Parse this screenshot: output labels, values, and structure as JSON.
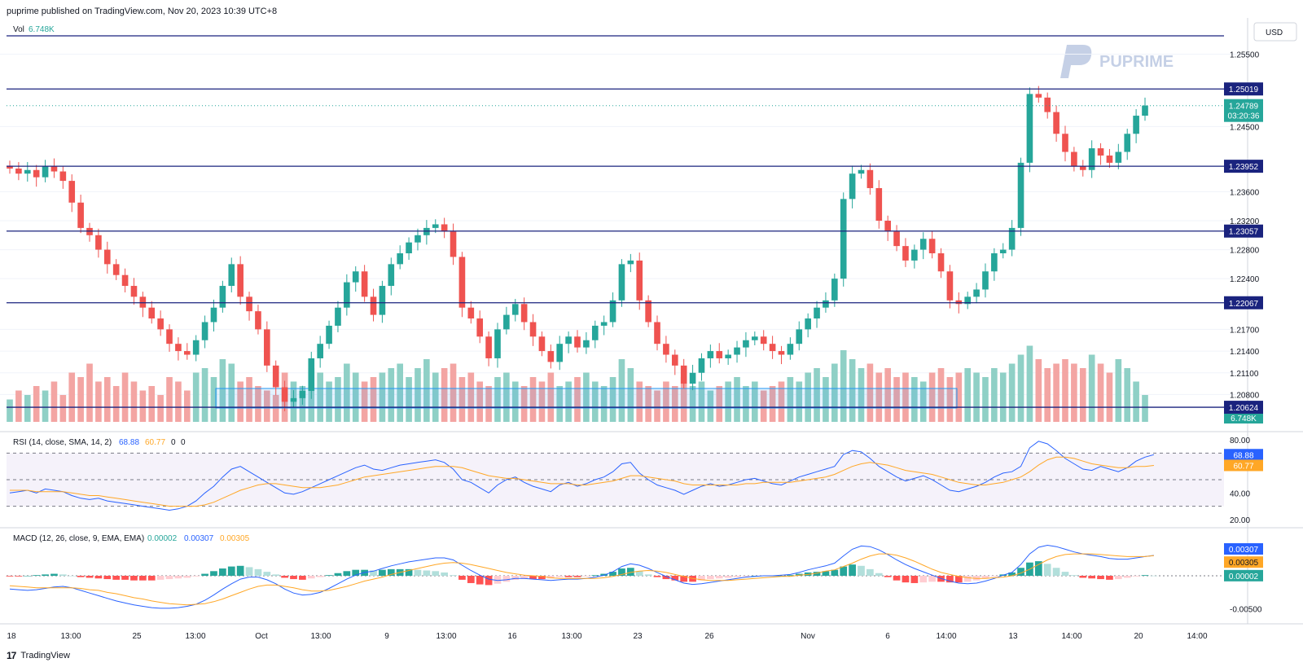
{
  "header": {
    "text": "puprime published on TradingView.com, Nov 20, 2023 10:39 UTC+8"
  },
  "footer": {
    "logo": "17",
    "brand": "TradingView"
  },
  "watermark": "PUPRIME",
  "colors": {
    "up": "#26a69a",
    "down": "#ef5350",
    "up_vol": "#8fd0c6",
    "down_vol": "#f3a5a3",
    "level": "#1a237e",
    "rsi_line": "#2962ff",
    "rsi_ma": "#ffa726",
    "macd_line": "#2962ff",
    "signal_line": "#ffa726",
    "grid": "#f0f3fa"
  },
  "chart_data": [
    {
      "type": "candlestick",
      "title": "",
      "currency": "USD",
      "volume_label": "Vol",
      "volume_value": "6.748K",
      "x_tick_labels": [
        "18",
        "13:00",
        "25",
        "13:00",
        "Oct",
        "13:00",
        "9",
        "13:00",
        "16",
        "13:00",
        "23",
        "26",
        "Nov",
        "6",
        "14:00",
        "13",
        "14:00",
        "20",
        "14:00"
      ],
      "y_tick_labels": [
        "1.25500",
        "1.24500",
        "1.23600",
        "1.23200",
        "1.22800",
        "1.22400",
        "1.21700",
        "1.21400",
        "1.21100",
        "1.20800"
      ],
      "ylim": [
        1.204,
        1.26
      ],
      "horizontal_levels": [
        "1.25019",
        "1.23952",
        "1.23057",
        "1.22067",
        "1.20624"
      ],
      "last_price": "1.24789",
      "countdown": "03:20:36",
      "close_series": [
        1.2392,
        1.2385,
        1.239,
        1.238,
        1.2395,
        1.2388,
        1.2375,
        1.2345,
        1.231,
        1.23,
        1.228,
        1.226,
        1.2245,
        1.223,
        1.2215,
        1.22,
        1.2185,
        1.217,
        1.215,
        1.214,
        1.2135,
        1.2155,
        1.218,
        1.22,
        1.223,
        1.226,
        1.2215,
        1.2195,
        1.217,
        1.212,
        1.209,
        1.207,
        1.2075,
        1.2085,
        1.213,
        1.215,
        1.2175,
        1.22,
        1.2235,
        1.225,
        1.2215,
        1.219,
        1.223,
        1.226,
        1.2275,
        1.229,
        1.23,
        1.231,
        1.2315,
        1.2305,
        1.227,
        1.22,
        1.2185,
        1.216,
        1.213,
        1.217,
        1.219,
        1.2205,
        1.218,
        1.216,
        1.214,
        1.2125,
        1.215,
        1.216,
        1.2145,
        1.2155,
        1.2175,
        1.218,
        1.221,
        1.226,
        1.2265,
        1.221,
        1.218,
        1.215,
        1.2135,
        1.212,
        1.2095,
        1.211,
        1.213,
        1.214,
        1.213,
        1.2135,
        1.2145,
        1.2155,
        1.216,
        1.215,
        1.214,
        1.2135,
        1.215,
        1.217,
        1.2185,
        1.22,
        1.221,
        1.224,
        1.235,
        1.2385,
        1.239,
        1.2365,
        1.232,
        1.2305,
        1.2285,
        1.2265,
        1.228,
        1.2295,
        1.2275,
        1.225,
        1.221,
        1.2205,
        1.2215,
        1.2225,
        1.225,
        1.2275,
        1.228,
        1.231,
        1.24,
        1.2495,
        1.249,
        1.247,
        1.244,
        1.2415,
        1.2395,
        1.239,
        1.242,
        1.241,
        1.24,
        1.2415,
        1.244,
        1.2465,
        1.2479
      ],
      "volume_series": [
        0.25,
        0.35,
        0.3,
        0.4,
        0.35,
        0.45,
        0.3,
        0.55,
        0.5,
        0.65,
        0.45,
        0.5,
        0.4,
        0.55,
        0.45,
        0.35,
        0.4,
        0.3,
        0.5,
        0.45,
        0.35,
        0.55,
        0.6,
        0.5,
        0.7,
        0.65,
        0.45,
        0.5,
        0.4,
        0.35,
        0.3,
        0.55,
        0.45,
        0.4,
        0.6,
        0.55,
        0.45,
        0.5,
        0.65,
        0.55,
        0.45,
        0.5,
        0.55,
        0.6,
        0.65,
        0.5,
        0.6,
        0.7,
        0.55,
        0.6,
        0.65,
        0.5,
        0.55,
        0.45,
        0.4,
        0.5,
        0.55,
        0.45,
        0.4,
        0.5,
        0.45,
        0.55,
        0.4,
        0.45,
        0.5,
        0.55,
        0.45,
        0.4,
        0.5,
        0.7,
        0.6,
        0.45,
        0.4,
        0.35,
        0.45,
        0.4,
        0.5,
        0.4,
        0.45,
        0.35,
        0.4,
        0.45,
        0.5,
        0.4,
        0.45,
        0.35,
        0.4,
        0.45,
        0.5,
        0.45,
        0.55,
        0.6,
        0.5,
        0.65,
        0.8,
        0.7,
        0.6,
        0.65,
        0.55,
        0.6,
        0.5,
        0.55,
        0.5,
        0.45,
        0.55,
        0.6,
        0.5,
        0.55,
        0.6,
        0.55,
        0.5,
        0.6,
        0.55,
        0.65,
        0.75,
        0.85,
        0.7,
        0.6,
        0.65,
        0.7,
        0.65,
        0.6,
        0.75,
        0.65,
        0.55,
        0.7,
        0.6,
        0.45,
        0.3
      ]
    },
    {
      "type": "line",
      "title": "RSI (14, close, SMA, 14, 2)",
      "values_label": [
        "68.88",
        "60.77",
        "0",
        "0"
      ],
      "y_tick_labels": [
        "80.00",
        "40.00",
        "20.00"
      ],
      "ylim": [
        15,
        85
      ],
      "bands": [
        30,
        50,
        70
      ],
      "series": [
        {
          "name": "RSI",
          "values": [
            40,
            41,
            42,
            40,
            43,
            42,
            41,
            38,
            36,
            35,
            36,
            34,
            33,
            32,
            31,
            30,
            29,
            28,
            27,
            28,
            30,
            34,
            40,
            45,
            52,
            58,
            60,
            56,
            52,
            48,
            44,
            40,
            39,
            41,
            44,
            47,
            50,
            53,
            56,
            59,
            61,
            58,
            57,
            59,
            61,
            62,
            63,
            64,
            65,
            63,
            58,
            50,
            48,
            44,
            40,
            46,
            50,
            52,
            48,
            45,
            43,
            41,
            46,
            48,
            45,
            47,
            50,
            52,
            56,
            62,
            63,
            55,
            50,
            46,
            44,
            42,
            39,
            42,
            45,
            47,
            45,
            46,
            48,
            50,
            51,
            49,
            47,
            46,
            49,
            52,
            54,
            56,
            58,
            60,
            69,
            72,
            71,
            66,
            60,
            56,
            52,
            49,
            51,
            53,
            50,
            46,
            42,
            41,
            43,
            45,
            48,
            52,
            55,
            56,
            60,
            74,
            79,
            77,
            72,
            66,
            62,
            58,
            57,
            60,
            58,
            56,
            59,
            64,
            67,
            68.88
          ]
        },
        {
          "name": "RSI-based MA",
          "values": [
            42,
            42,
            42,
            41,
            41,
            41,
            41,
            40,
            39,
            38,
            38,
            37,
            36,
            35,
            34,
            33,
            32,
            31,
            30,
            30,
            30,
            30,
            31,
            33,
            36,
            39,
            42,
            44,
            46,
            47,
            47,
            46,
            45,
            44,
            44,
            44,
            45,
            46,
            48,
            50,
            52,
            53,
            54,
            55,
            56,
            57,
            58,
            59,
            60,
            60,
            60,
            59,
            57,
            55,
            53,
            52,
            51,
            51,
            50,
            49,
            48,
            47,
            47,
            47,
            46,
            46,
            47,
            48,
            49,
            51,
            53,
            53,
            52,
            51,
            50,
            49,
            47,
            46,
            46,
            46,
            46,
            46,
            46,
            47,
            47,
            48,
            48,
            48,
            48,
            49,
            50,
            51,
            52,
            54,
            57,
            60,
            62,
            63,
            62,
            61,
            59,
            57,
            56,
            55,
            54,
            52,
            50,
            48,
            47,
            46,
            46,
            47,
            48,
            50,
            52,
            56,
            61,
            65,
            67,
            67,
            66,
            64,
            62,
            61,
            60,
            59,
            59,
            60,
            60,
            60.77
          ]
        }
      ]
    },
    {
      "type": "bar",
      "title": "MACD (12, 26, close, 9, EMA, EMA)",
      "values_label": [
        "0.00002",
        "0.00307",
        "0.00305"
      ],
      "y_tick_labels": [
        "-0.00500"
      ],
      "ylim": [
        -0.007,
        0.007
      ],
      "series": [
        {
          "name": "Histogram",
          "values": [
            -0.0001,
            -0.0001,
            0.0,
            0.0001,
            0.0002,
            0.0003,
            0.0002,
            0.0,
            -0.0002,
            -0.0003,
            -0.0004,
            -0.0005,
            -0.0006,
            -0.0006,
            -0.0007,
            -0.0007,
            -0.0007,
            -0.0006,
            -0.0005,
            -0.0004,
            -0.0003,
            -0.0001,
            0.0003,
            0.0007,
            0.0011,
            0.0014,
            0.0015,
            0.0013,
            0.001,
            0.0006,
            0.0002,
            -0.0003,
            -0.0005,
            -0.0006,
            -0.0004,
            -0.0002,
            0.0001,
            0.0004,
            0.0007,
            0.0009,
            0.0009,
            0.0008,
            0.0009,
            0.001,
            0.001,
            0.001,
            0.0009,
            0.0008,
            0.0007,
            0.0005,
            0.0001,
            -0.0006,
            -0.0011,
            -0.0013,
            -0.0014,
            -0.0012,
            -0.0009,
            -0.0006,
            -0.0005,
            -0.0005,
            -0.0005,
            -0.0004,
            -0.0002,
            -0.0002,
            -0.0002,
            -0.0001,
            0.0001,
            0.0003,
            0.0006,
            0.0011,
            0.0012,
            0.0007,
            0.0002,
            -0.0002,
            -0.0005,
            -0.0007,
            -0.0009,
            -0.0009,
            -0.0007,
            -0.0005,
            -0.0004,
            -0.0003,
            -0.0002,
            -0.0001,
            0.0,
            0.0,
            0.0,
            0.0,
            0.0001,
            0.0003,
            0.0005,
            0.0006,
            0.0007,
            0.0009,
            0.0014,
            0.0017,
            0.0015,
            0.001,
            0.0004,
            -0.0002,
            -0.0007,
            -0.001,
            -0.0011,
            -0.001,
            -0.0009,
            -0.0009,
            -0.001,
            -0.001,
            -0.0009,
            -0.0007,
            -0.0004,
            -0.0001,
            0.0002,
            0.0005,
            0.0012,
            0.002,
            0.0022,
            0.0018,
            0.0012,
            0.0006,
            0.0001,
            -0.0003,
            -0.0004,
            -0.0005,
            -0.0006,
            -0.0005,
            -0.0003,
            -0.0001,
            0.0001,
            2e-05
          ]
        },
        {
          "name": "MACD",
          "values": [
            -0.002,
            -0.0021,
            -0.0022,
            -0.0021,
            -0.0019,
            -0.0017,
            -0.0016,
            -0.0018,
            -0.0022,
            -0.0026,
            -0.003,
            -0.0034,
            -0.0038,
            -0.0041,
            -0.0044,
            -0.0046,
            -0.0048,
            -0.0049,
            -0.0049,
            -0.0048,
            -0.0046,
            -0.0043,
            -0.0037,
            -0.0029,
            -0.002,
            -0.0012,
            -0.0005,
            -0.0002,
            -0.0002,
            -0.0006,
            -0.0012,
            -0.002,
            -0.0026,
            -0.0029,
            -0.0028,
            -0.0025,
            -0.0019,
            -0.0012,
            -0.0005,
            0.0001,
            0.0005,
            0.0007,
            0.0011,
            0.0015,
            0.0018,
            0.0021,
            0.0023,
            0.0025,
            0.0027,
            0.0027,
            0.0024,
            0.0016,
            0.0008,
            0.0001,
            -0.0005,
            -0.0007,
            -0.0006,
            -0.0004,
            -0.0004,
            -0.0005,
            -0.0006,
            -0.0007,
            -0.0006,
            -0.0005,
            -0.0005,
            -0.0004,
            -0.0002,
            0.0001,
            0.0006,
            0.0014,
            0.0018,
            0.0016,
            0.0011,
            0.0005,
            -0.0001,
            -0.0006,
            -0.0011,
            -0.0013,
            -0.0012,
            -0.001,
            -0.0008,
            -0.0006,
            -0.0004,
            -0.0002,
            -0.0001,
            0.0,
            0.0,
            0.0001,
            0.0002,
            0.0005,
            0.0009,
            0.0012,
            0.0015,
            0.0019,
            0.003,
            0.004,
            0.0045,
            0.0044,
            0.0039,
            0.0032,
            0.0024,
            0.0017,
            0.0011,
            0.0006,
            0.0001,
            -0.0004,
            -0.0008,
            -0.0011,
            -0.0012,
            -0.0011,
            -0.0008,
            -0.0004,
            0.0001,
            0.0005,
            0.0017,
            0.0033,
            0.0043,
            0.0046,
            0.0044,
            0.004,
            0.0036,
            0.0033,
            0.0031,
            0.0029,
            0.0026,
            0.0025,
            0.0025,
            0.0027,
            0.0029,
            0.00307
          ]
        },
        {
          "name": "Signal",
          "values": [
            -0.0015,
            -0.0016,
            -0.0017,
            -0.0018,
            -0.0018,
            -0.0018,
            -0.0018,
            -0.0018,
            -0.0019,
            -0.0021,
            -0.0022,
            -0.0025,
            -0.0027,
            -0.003,
            -0.0033,
            -0.0035,
            -0.0038,
            -0.004,
            -0.0042,
            -0.0043,
            -0.0044,
            -0.0043,
            -0.0042,
            -0.0039,
            -0.0035,
            -0.003,
            -0.0025,
            -0.002,
            -0.0016,
            -0.0014,
            -0.0014,
            -0.0016,
            -0.0018,
            -0.0021,
            -0.0023,
            -0.0023,
            -0.0022,
            -0.0019,
            -0.0016,
            -0.0012,
            -0.0008,
            -0.0005,
            -0.0002,
            0.0002,
            0.0005,
            0.0008,
            0.0011,
            0.0014,
            0.0017,
            0.0019,
            0.002,
            0.0019,
            0.0017,
            0.0014,
            0.0011,
            0.0008,
            0.0005,
            0.0003,
            0.0001,
            0.0,
            -0.0001,
            -0.0003,
            -0.0004,
            -0.0004,
            -0.0004,
            -0.0004,
            -0.0004,
            -0.0003,
            -0.0001,
            0.0002,
            0.0005,
            0.0007,
            0.0008,
            0.0007,
            0.0005,
            0.0002,
            -0.0001,
            -0.0004,
            -0.0006,
            -0.0007,
            -0.0007,
            -0.0007,
            -0.0006,
            -0.0005,
            -0.0004,
            -0.0003,
            -0.0002,
            -0.0001,
            -0.0001,
            0.0001,
            0.0002,
            0.0004,
            0.0007,
            0.0009,
            0.0014,
            0.0019,
            0.0025,
            0.003,
            0.0033,
            0.0033,
            0.0031,
            0.0027,
            0.0022,
            0.0016,
            0.001,
            0.0005,
            0.0002,
            -0.0001,
            -0.0003,
            -0.0004,
            -0.0004,
            -0.0003,
            -0.0002,
            0.0,
            0.0004,
            0.001,
            0.0017,
            0.0024,
            0.0029,
            0.0032,
            0.0033,
            0.0033,
            0.0033,
            0.0032,
            0.0031,
            0.003,
            0.0029,
            0.0029,
            0.0029,
            0.00305
          ]
        }
      ]
    }
  ]
}
